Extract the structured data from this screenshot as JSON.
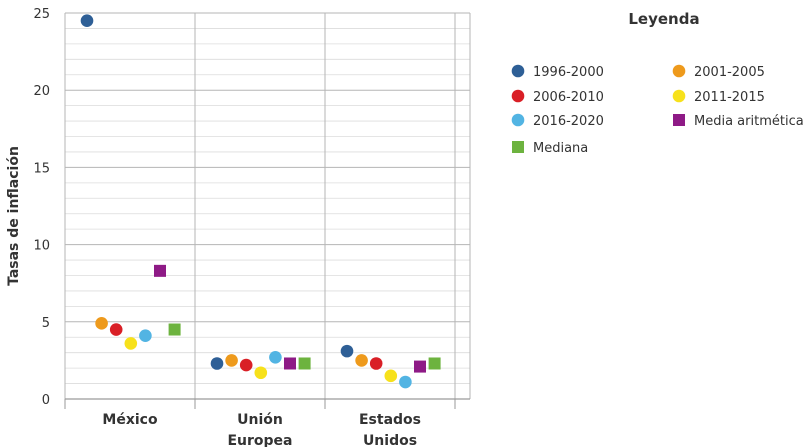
{
  "chart_data": {
    "type": "scatter",
    "ylabel": "Tasas de inflación",
    "ylim": [
      0,
      25
    ],
    "yticks": [
      0,
      5,
      10,
      15,
      20,
      25
    ],
    "grid": true,
    "legend_title": "Leyenda",
    "legend_position": "right",
    "categories": [
      {
        "lines": [
          "México"
        ]
      },
      {
        "lines": [
          "Unión",
          "Europea"
        ]
      },
      {
        "lines": [
          "Estados",
          "Unidos"
        ]
      }
    ],
    "series": [
      {
        "name": "1996-2000",
        "color": "#2e5f96",
        "marker": "circle",
        "values": [
          24.5,
          2.3,
          3.1
        ]
      },
      {
        "name": "2001-2005",
        "color": "#ee9a1c",
        "marker": "circle",
        "values": [
          4.9,
          2.5,
          2.5
        ]
      },
      {
        "name": "2006-2010",
        "color": "#d91f26",
        "marker": "circle",
        "values": [
          4.5,
          2.2,
          2.3
        ]
      },
      {
        "name": "2011-2015",
        "color": "#f7e11b",
        "marker": "circle",
        "values": [
          3.6,
          1.7,
          1.5
        ]
      },
      {
        "name": "2016-2020",
        "color": "#52b4e3",
        "marker": "circle",
        "values": [
          4.1,
          2.7,
          1.1
        ]
      },
      {
        "name": "Media aritmética",
        "color": "#8e1a86",
        "marker": "square",
        "values": [
          8.3,
          2.3,
          2.1
        ]
      },
      {
        "name": "Mediana",
        "color": "#6db33f",
        "marker": "square",
        "values": [
          4.5,
          2.3,
          2.3
        ]
      }
    ]
  }
}
